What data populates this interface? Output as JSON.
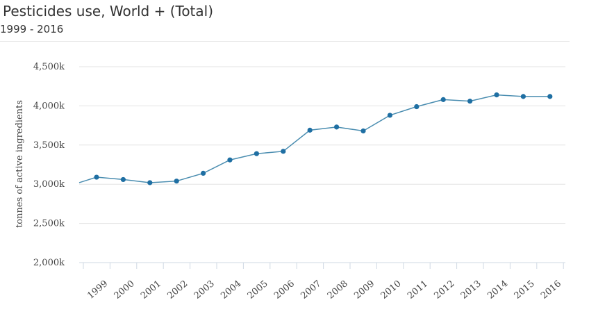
{
  "chart_data": {
    "type": "line",
    "title": "Pesticides use, World + (Total)",
    "subtitle": "1999 - 2016",
    "ylabel": "tonnes of active ingredients",
    "xlabel": "",
    "ylim": [
      2000,
      4500
    ],
    "yticks": [
      {
        "value": 2000,
        "label": "2,000k"
      },
      {
        "value": 2500,
        "label": "2,500k"
      },
      {
        "value": 3000,
        "label": "3,000k"
      },
      {
        "value": 3500,
        "label": "3,500k"
      },
      {
        "value": 4000,
        "label": "4,000k"
      },
      {
        "value": 4500,
        "label": "4,500k"
      }
    ],
    "categories": [
      "1999",
      "2000",
      "2001",
      "2002",
      "2003",
      "2004",
      "2005",
      "2006",
      "2007",
      "2008",
      "2009",
      "2010",
      "2011",
      "2012",
      "2013",
      "2014",
      "2015",
      "2016"
    ],
    "values": [
      3090,
      3060,
      3020,
      3040,
      3140,
      3310,
      3390,
      3420,
      3690,
      3730,
      3680,
      3880,
      3990,
      4080,
      4060,
      4140,
      4120,
      4120
    ],
    "line_start_value": 3020,
    "grid": true,
    "legend": "none",
    "series_color": "#4a8db0",
    "point_color": "#1f6fa3"
  }
}
